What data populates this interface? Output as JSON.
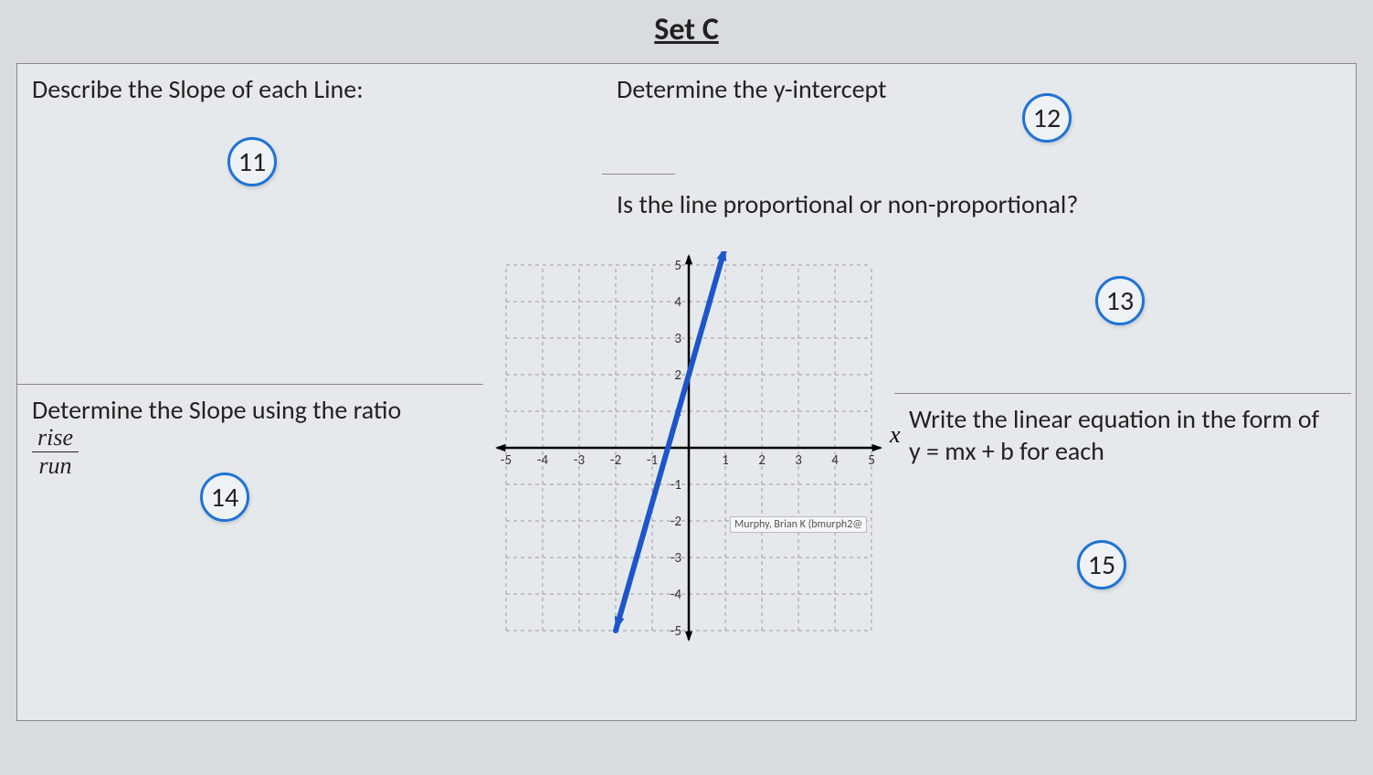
{
  "title": "Set C",
  "q11": {
    "prompt": "Describe the Slope of each Line:",
    "badge": "11"
  },
  "q12": {
    "prompt": "Determine the y-intercept",
    "badge": "12"
  },
  "q13": {
    "prompt": "Is the line proportional or non-proportional?",
    "badge": "13"
  },
  "q14": {
    "prompt_lead": "Determine the Slope using the ratio",
    "num": "rise",
    "den": "run",
    "badge": "14"
  },
  "q15": {
    "prompt": "Write the linear equation in the form of y = mx + b for each",
    "badge": "15"
  },
  "chart": {
    "type": "line",
    "xlim": [
      -5,
      5
    ],
    "ylim": [
      -5,
      5
    ],
    "xtick_step": 1,
    "ytick_step": 1,
    "grid_color": "#9a9a9a",
    "grid_dash": "4,4",
    "axis_color": "#000000",
    "line_color": "#1d56c9",
    "line_width": 6,
    "line_points": [
      [
        -2,
        -5
      ],
      [
        1,
        5.5
      ]
    ],
    "arrowheads": true,
    "x_axis_label": "x",
    "tooltip_text": "Murphy, Brian K (bmurph2@",
    "background_color": "#e6e9ec",
    "tick_label_fontsize": 15,
    "tick_label_color": "#333333"
  },
  "colors": {
    "page_bg": "#d8dce0",
    "sheet_bg": "#e6e9ec",
    "border": "#888888",
    "badge_border": "#1e73d6",
    "text": "#222222"
  }
}
